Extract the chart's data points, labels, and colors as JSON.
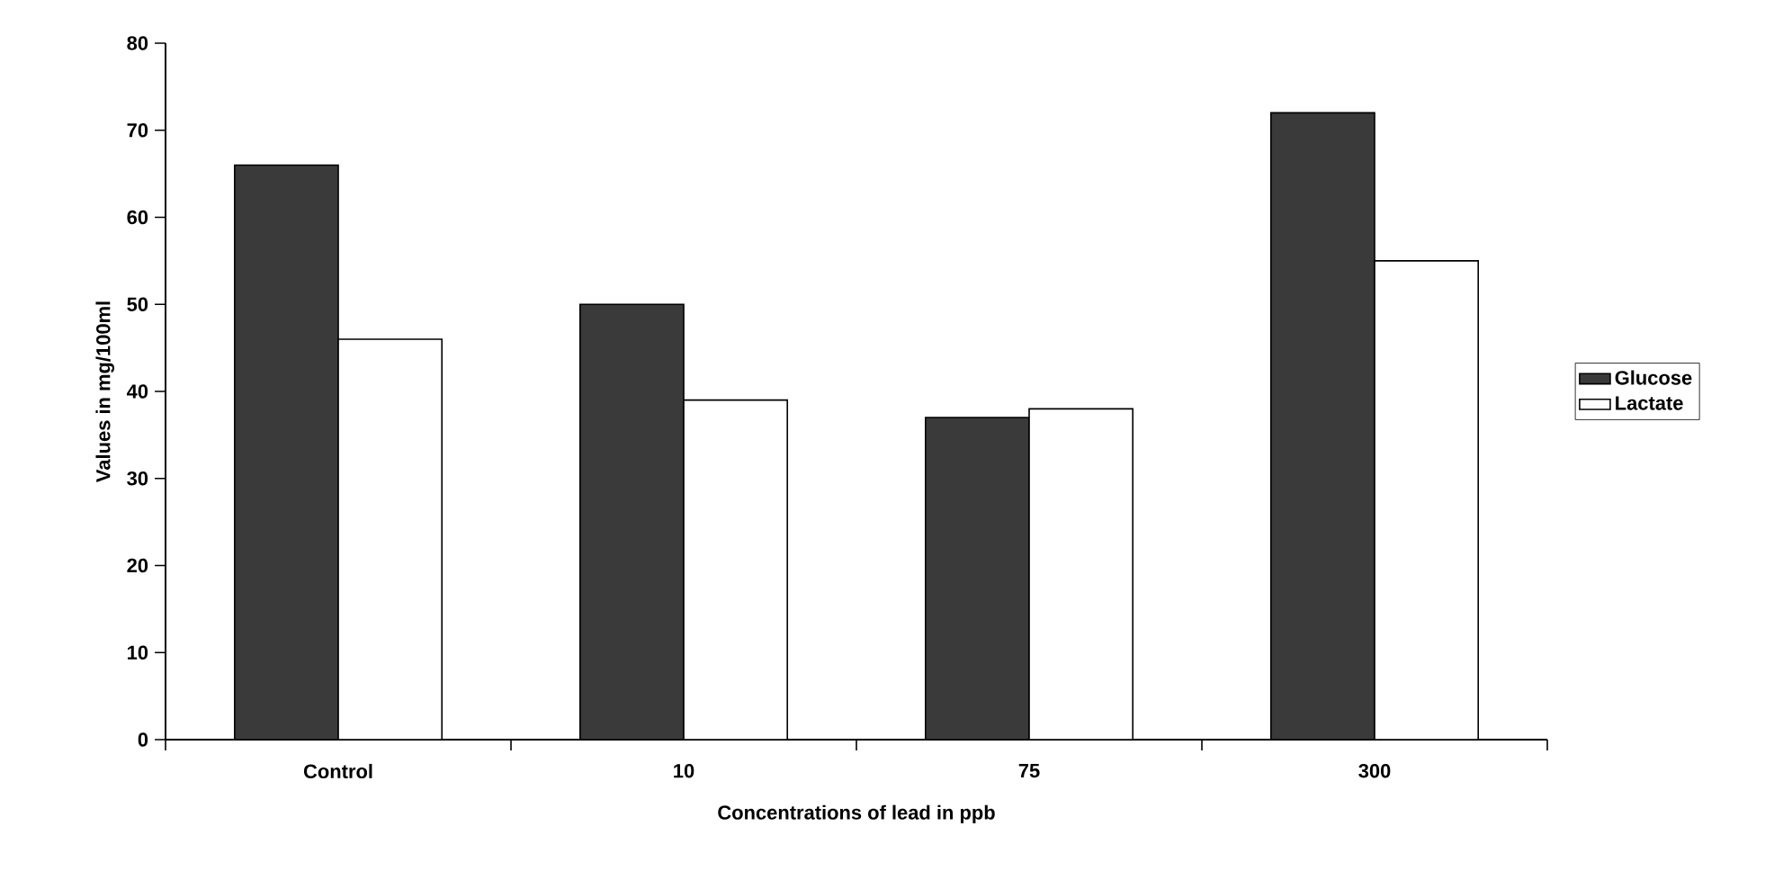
{
  "chart_data": {
    "type": "bar",
    "xlabel": "Concentrations of lead in ppb",
    "ylabel": "Values in mg/100ml",
    "categories": [
      "Control",
      "10",
      "75",
      "300"
    ],
    "series": [
      {
        "name": "Glucose",
        "color": "#3a3a3a",
        "values": [
          66,
          50,
          37,
          72
        ]
      },
      {
        "name": "Lactate",
        "color": "#ffffff",
        "values": [
          46,
          39,
          38,
          55
        ]
      }
    ],
    "ylim": [
      0,
      80
    ],
    "yticks": [
      0,
      10,
      20,
      30,
      40,
      50,
      60,
      70,
      80
    ],
    "legend": "right"
  }
}
